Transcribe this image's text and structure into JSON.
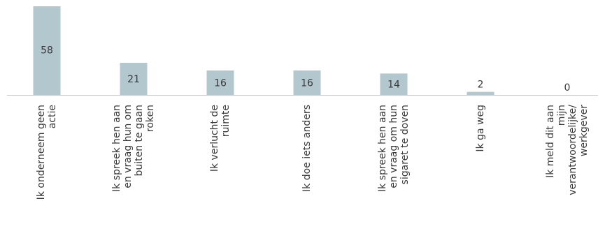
{
  "chart_data": {
    "type": "bar",
    "categories": [
      [
        "Ik onderneem geen",
        "actie"
      ],
      [
        "Ik spreek hen aan",
        "en vraag hun om",
        "buiten te gaan",
        "roken"
      ],
      [
        "Ik verlucht de",
        "ruimte"
      ],
      [
        "Ik doe iets anders"
      ],
      [
        "Ik spreek hen aan",
        "en vraag om hun",
        "sigaret te doven"
      ],
      [
        "Ik ga weg"
      ],
      [
        "Ik meld dit aan",
        "mijn",
        "verantwoordelijke/",
        "werkgever"
      ]
    ],
    "values": [
      58,
      21,
      16,
      16,
      14,
      2,
      0
    ],
    "value_labels": [
      "58",
      "21",
      "16",
      "16",
      "14",
      "2",
      "0"
    ],
    "ylim": [
      0,
      62
    ],
    "grid": false,
    "colors": {
      "bar": "#b3c7cf",
      "axis": "#c8c8c8",
      "text": "#3a3a3a"
    }
  }
}
